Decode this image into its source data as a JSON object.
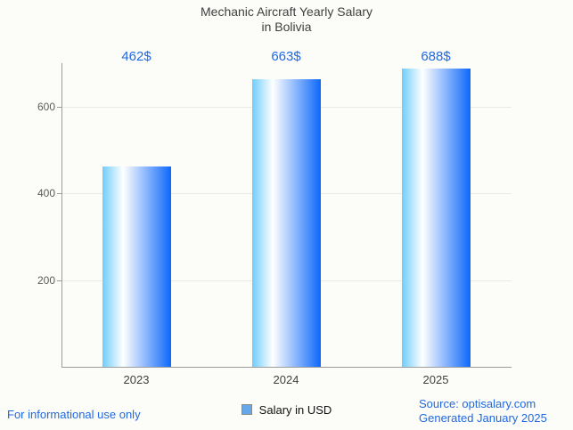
{
  "title": {
    "line1": "Mechanic Aircraft Yearly Salary",
    "line2": "in Bolivia"
  },
  "chart_data": {
    "type": "bar",
    "title": "Mechanic Aircraft Yearly Salary in Bolivia",
    "categories": [
      "2023",
      "2024",
      "2025"
    ],
    "values": [
      462,
      663,
      688
    ],
    "value_labels": [
      "462$",
      "663$",
      "688$"
    ],
    "series_name": "Salary in USD",
    "xlabel": "",
    "ylabel": "",
    "ylim": [
      0,
      700
    ],
    "yticks": [
      200,
      400,
      600
    ],
    "grid": true,
    "legend_position": "bottom"
  },
  "legend": {
    "label": "Salary in USD"
  },
  "footer": {
    "left": "For informational use only",
    "source": "Source: optisalary.com",
    "generated": "Generated January 2025"
  },
  "colors": {
    "background": "#fcfcf9",
    "title_text": "#3f3f3f",
    "accent_blue": "#2169e0",
    "bar_gradient": [
      "#6fcdfb",
      "#ffffff",
      "#0d68fb"
    ],
    "legend_marker_fill": "#64a7ea",
    "legend_marker_border": "#8a8a8a",
    "axis_line": "#9b9b9b",
    "gridline": "#eaeae6",
    "tick_text": "#5a5a5a"
  }
}
